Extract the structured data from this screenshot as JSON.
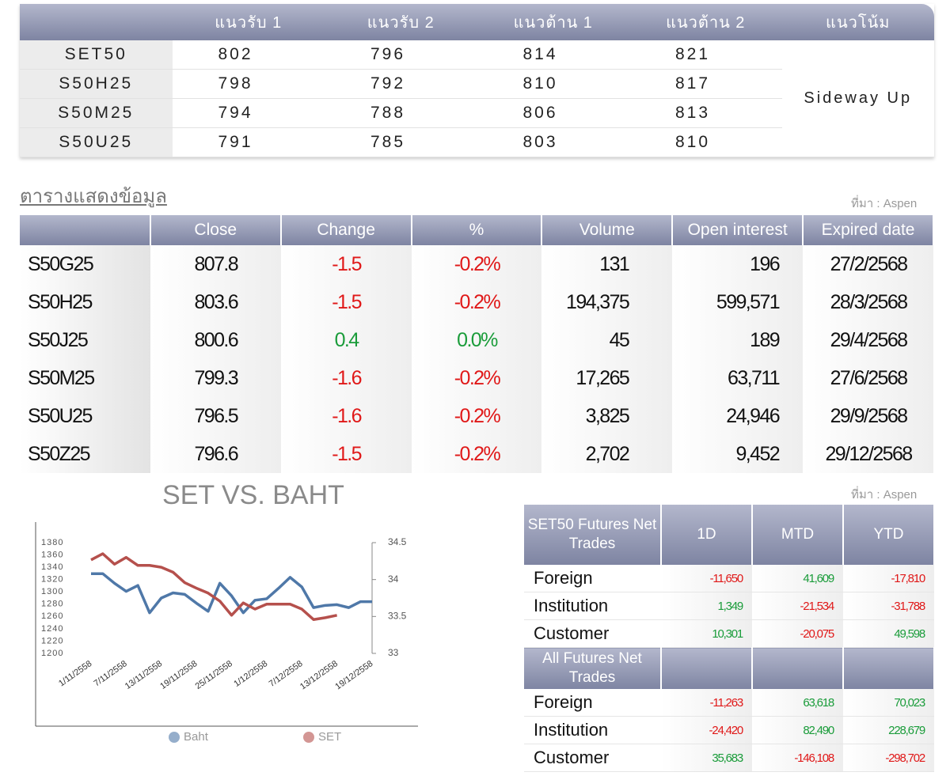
{
  "support_table": {
    "headers": [
      "แนวรับ 1",
      "แนวรับ 2",
      "แนวต้าน 1",
      "แนวต้าน 2",
      "แนวโน้ม"
    ],
    "rows": [
      {
        "name": "SET50",
        "values": [
          802,
          796,
          814,
          821
        ]
      },
      {
        "name": "S50H25",
        "values": [
          798,
          792,
          810,
          817
        ]
      },
      {
        "name": "S50M25",
        "values": [
          794,
          788,
          806,
          813
        ]
      },
      {
        "name": "S50U25",
        "values": [
          791,
          785,
          803,
          810
        ]
      }
    ],
    "trend": "Sideway Up"
  },
  "data_table": {
    "title": "ตารางแสดงข้อมูล",
    "source": "ที่มา : Aspen",
    "headers": [
      "Close",
      "Change",
      "%",
      "Volume",
      "Open interest",
      "Expired date"
    ],
    "rows": [
      [
        "S50G25",
        807.8,
        -1.5,
        "-0.2%",
        131,
        196,
        "27/2/2568"
      ],
      [
        "S50H25",
        803.6,
        -1.5,
        "-0.2%",
        "194,375",
        "599,571",
        "28/3/2568"
      ],
      [
        "S50J25",
        800.6,
        0.4,
        "0.0%",
        45,
        189,
        "29/4/2568"
      ],
      [
        "S50M25",
        799.3,
        -1.6,
        "-0.2%",
        "17,265",
        "63,711",
        "27/6/2568"
      ],
      [
        "S50U25",
        796.5,
        -1.6,
        "-0.2%",
        "3,825",
        "24,946",
        "29/9/2568"
      ],
      [
        "S50Z25",
        796.6,
        -1.5,
        "-0.2%",
        "2,702",
        "9,452",
        "29/12/2568"
      ]
    ],
    "colors": {
      "up": "#1a9c3a",
      "down": "#e01818"
    }
  },
  "chart_data": {
    "type": "line",
    "title": "SET VS. BAHT",
    "categories": [
      "1/11/2558",
      null,
      null,
      "7/11/2558",
      null,
      null,
      "13/11/2558",
      null,
      null,
      "19/11/2558",
      null,
      null,
      "25/11/2558",
      null,
      null,
      "1/12/2558",
      null,
      null,
      "7/12/2558",
      null,
      null,
      "13/12/2558",
      null,
      null,
      "19/12/2558"
    ],
    "series": [
      {
        "name": "Baht",
        "color": "#4f78a8",
        "axis": "y2",
        "values": [
          34.08,
          34.08,
          33.95,
          33.84,
          33.92,
          33.55,
          33.75,
          33.82,
          33.8,
          33.68,
          33.57,
          33.95,
          33.78,
          33.55,
          33.72,
          33.74,
          33.88,
          34.03,
          33.9,
          33.62,
          33.65,
          33.66,
          33.62,
          33.7,
          33.7
        ]
      },
      {
        "name": "SET",
        "color": "#b5504c",
        "values": [
          1352,
          1362,
          1345,
          1356,
          1343,
          1343,
          1340,
          1332,
          1315,
          1306,
          1298,
          1285,
          1262,
          1282,
          1272,
          1280,
          1280,
          1280,
          1272,
          1255,
          1258,
          1262,
          null,
          null,
          null
        ]
      }
    ],
    "ylim": [
      1200,
      1380
    ],
    "yticks": [
      1200,
      1220,
      1240,
      1260,
      1280,
      1300,
      1320,
      1340,
      1360,
      1380
    ],
    "y2lim": [
      33,
      34.5
    ],
    "y2ticks": [
      33,
      33.5,
      34,
      34.5
    ]
  },
  "net_trades": {
    "source": "ที่มา : Aspen",
    "headers": [
      "1D",
      "MTD",
      "YTD"
    ],
    "blocks": [
      {
        "title": "SET50 Futures Net Trades",
        "rows": [
          {
            "name": "Foreign",
            "values": [
              "-11,650",
              "41,609",
              "-17,810"
            ]
          },
          {
            "name": "Institution",
            "values": [
              "1,349",
              "-21,534",
              "-31,788"
            ]
          },
          {
            "name": "Customer",
            "values": [
              "10,301",
              "-20,075",
              "49,598"
            ]
          }
        ]
      },
      {
        "title": "All Futures Net Trades",
        "rows": [
          {
            "name": "Foreign",
            "values": [
              "-11,263",
              "63,618",
              "70,023"
            ]
          },
          {
            "name": "Institution",
            "values": [
              "-24,420",
              "82,490",
              "228,679"
            ]
          },
          {
            "name": "Customer",
            "values": [
              "35,683",
              "-146,108",
              "-298,702"
            ]
          }
        ]
      }
    ]
  }
}
